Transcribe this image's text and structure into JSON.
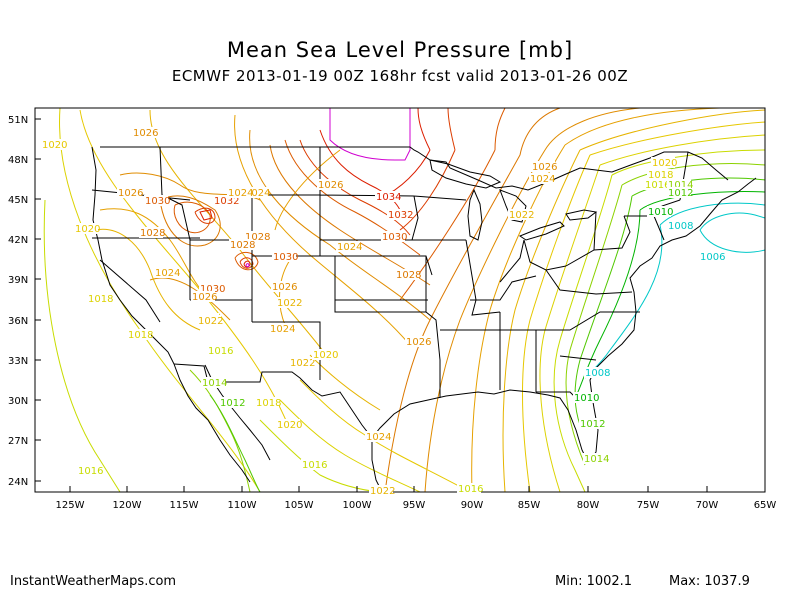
{
  "title": "Mean Sea Level Pressure [mb]",
  "subtitle": "ECMWF 2013-01-19 00Z 168hr fcst valid 2013-01-26 00Z",
  "axes": {
    "lat_ticks": [
      "51N",
      "48N",
      "45N",
      "42N",
      "39N",
      "36N",
      "33N",
      "30N",
      "27N",
      "24N"
    ],
    "lon_ticks": [
      "125W",
      "120W",
      "115W",
      "110W",
      "105W",
      "100W",
      "95W",
      "90W",
      "85W",
      "80W",
      "75W",
      "70W",
      "65W"
    ]
  },
  "colors": {
    "c1006": "#00c8c8",
    "c1008": "#00c8c8",
    "c1010": "#00b400",
    "c1012": "#50c800",
    "c1014": "#8cd200",
    "c1016": "#c8dc00",
    "c1018": "#dcd200",
    "c1020": "#e6c800",
    "c1022": "#e6b400",
    "c1024": "#e6a000",
    "c1026": "#e08c00",
    "c1028": "#dc7800",
    "c1030": "#dc5a00",
    "c1032": "#dc3c00",
    "c1034": "#dc1e00",
    "c1036": "#d000d0",
    "borders": "#000000"
  },
  "contour_labels": [
    {
      "text": "1026",
      "c": "c1026"
    },
    {
      "text": "1020",
      "c": "c1020"
    },
    {
      "text": "1026",
      "c": "c1026"
    },
    {
      "text": "1024",
      "c": "c1024"
    },
    {
      "text": "1030",
      "c": "c1030"
    },
    {
      "text": "1032",
      "c": "c1032"
    },
    {
      "text": "1024",
      "c": "c1024"
    },
    {
      "text": "1028",
      "c": "c1028"
    },
    {
      "text": "1020",
      "c": "c1020"
    },
    {
      "text": "1028",
      "c": "c1028"
    },
    {
      "text": "1030",
      "c": "c1030"
    },
    {
      "text": "1028",
      "c": "c1028"
    },
    {
      "text": "1024",
      "c": "c1024"
    },
    {
      "text": "1030",
      "c": "c1030"
    },
    {
      "text": "1026",
      "c": "c1026"
    },
    {
      "text": "1026",
      "c": "c1026"
    },
    {
      "text": "1022",
      "c": "c1022"
    },
    {
      "text": "1022",
      "c": "c1022"
    },
    {
      "text": "1024",
      "c": "c1024"
    },
    {
      "text": "1018",
      "c": "c1018"
    },
    {
      "text": "1018",
      "c": "c1018"
    },
    {
      "text": "1016",
      "c": "c1016"
    },
    {
      "text": "1022",
      "c": "c1022"
    },
    {
      "text": "1020",
      "c": "c1020"
    },
    {
      "text": "1022",
      "c": "c1022"
    },
    {
      "text": "1014",
      "c": "c1014"
    },
    {
      "text": "1012",
      "c": "c1012"
    },
    {
      "text": "1018",
      "c": "c1018"
    },
    {
      "text": "1020",
      "c": "c1020"
    },
    {
      "text": "1016",
      "c": "c1016"
    },
    {
      "text": "1016",
      "c": "c1016"
    },
    {
      "text": "1022",
      "c": "c1022"
    },
    {
      "text": "1016",
      "c": "c1016"
    },
    {
      "text": "1034",
      "c": "c1034"
    },
    {
      "text": "1032",
      "c": "c1032"
    },
    {
      "text": "1030",
      "c": "c1030"
    },
    {
      "text": "1026",
      "c": "c1026"
    },
    {
      "text": "1024",
      "c": "c1024"
    },
    {
      "text": "1028",
      "c": "c1028"
    },
    {
      "text": "1026",
      "c": "c1026"
    },
    {
      "text": "1024",
      "c": "c1024"
    },
    {
      "text": "1026",
      "c": "c1026"
    },
    {
      "text": "1024",
      "c": "c1024"
    },
    {
      "text": "1022",
      "c": "c1022"
    },
    {
      "text": "1020",
      "c": "c1020"
    },
    {
      "text": "1018",
      "c": "c1018"
    },
    {
      "text": "1016",
      "c": "c1016"
    },
    {
      "text": "1014",
      "c": "c1014"
    },
    {
      "text": "1012",
      "c": "c1012"
    },
    {
      "text": "1010",
      "c": "c1010"
    },
    {
      "text": "1008",
      "c": "c1008"
    },
    {
      "text": "1006",
      "c": "c1006"
    },
    {
      "text": "1008",
      "c": "c1008"
    },
    {
      "text": "1010",
      "c": "c1010"
    },
    {
      "text": "1012",
      "c": "c1012"
    },
    {
      "text": "1014",
      "c": "c1014"
    }
  ],
  "footer": {
    "site": "InstantWeatherMaps.com",
    "min": "Min: 1002.1",
    "max": "Max: 1037.9"
  }
}
